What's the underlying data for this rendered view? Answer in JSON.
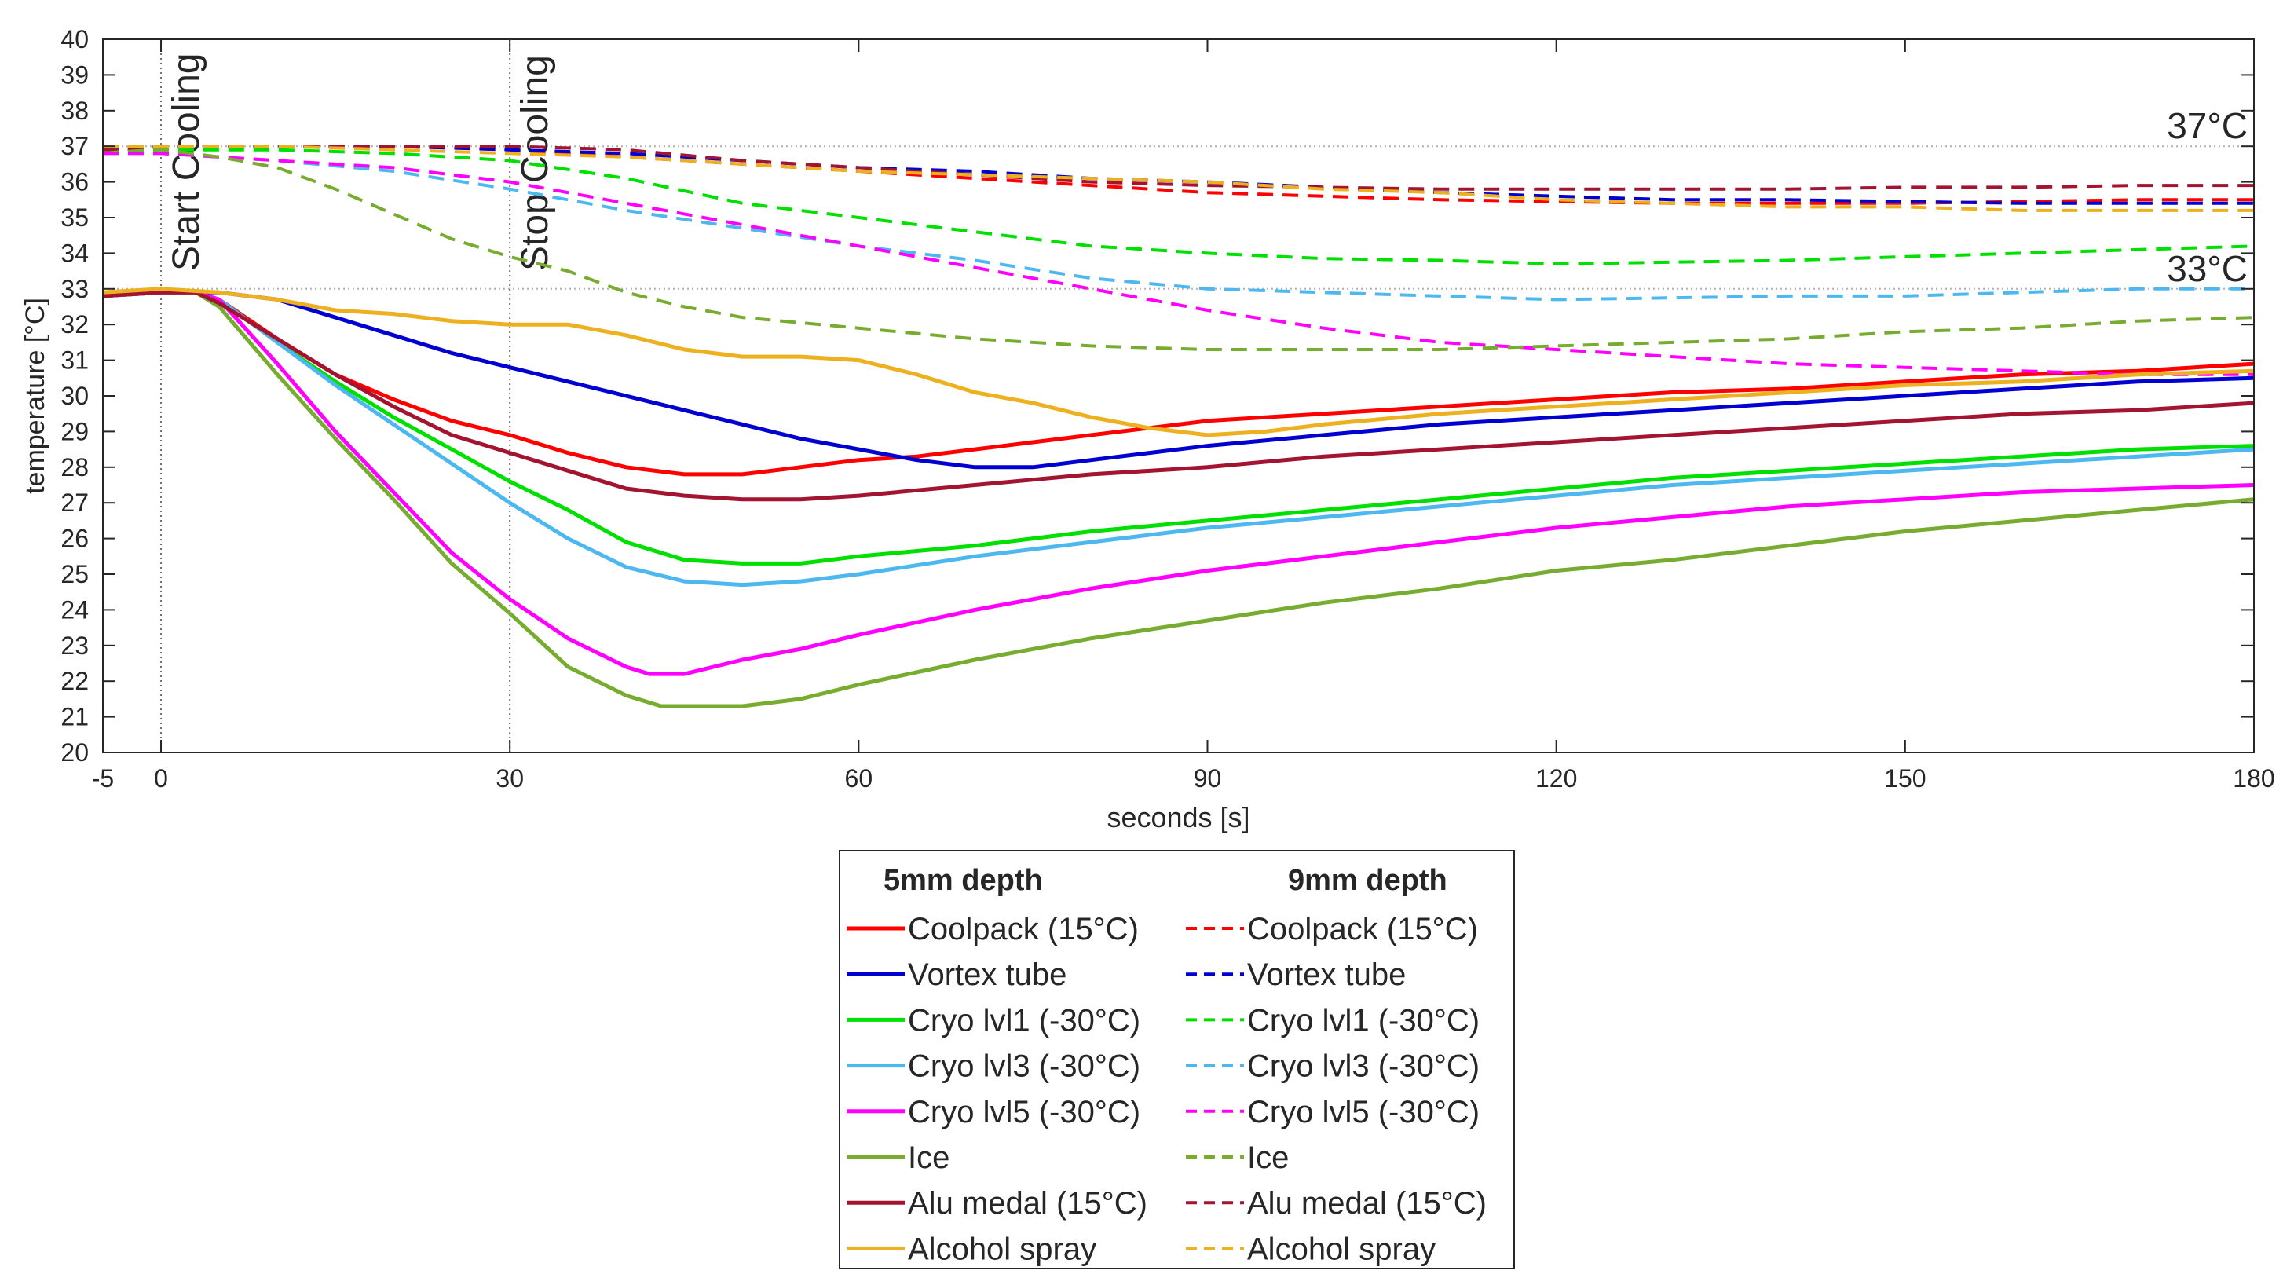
{
  "chart_data": {
    "type": "line",
    "title": "",
    "xlabel": "seconds [s]",
    "ylabel": "temperature [°C]",
    "xlim": [
      -5,
      180
    ],
    "ylim": [
      20,
      40
    ],
    "xticks": [
      -5,
      0,
      30,
      60,
      90,
      120,
      150,
      180
    ],
    "yticks": [
      20,
      21,
      22,
      23,
      24,
      25,
      26,
      27,
      28,
      29,
      30,
      31,
      32,
      33,
      34,
      35,
      36,
      37,
      38,
      39,
      40
    ],
    "grid": false,
    "reference_lines": [
      {
        "value": 37,
        "label": "37°C",
        "color": "#b0b0b0"
      },
      {
        "value": 33,
        "label": "33°C",
        "color": "#b0b0b0"
      }
    ],
    "events": [
      {
        "x": 0,
        "label": "Start Cooling"
      },
      {
        "x": 30,
        "label": "Stop Cooling"
      }
    ],
    "legend": {
      "location": "bottom-center",
      "col1_title": "5mm depth",
      "col2_title": "9mm depth"
    },
    "series": [
      {
        "name": "Coolpack (15°C)",
        "depth": "5mm",
        "color": "#ff0000",
        "dash": false,
        "x": [
          -5,
          0,
          3,
          5,
          10,
          15,
          20,
          25,
          30,
          35,
          40,
          45,
          50,
          55,
          60,
          65,
          70,
          75,
          80,
          85,
          90,
          100,
          110,
          120,
          130,
          140,
          150,
          160,
          170,
          180
        ],
        "y": [
          32.8,
          32.9,
          32.9,
          32.7,
          31.6,
          30.6,
          29.9,
          29.3,
          28.9,
          28.4,
          28.0,
          27.8,
          27.8,
          28.0,
          28.2,
          28.3,
          28.5,
          28.7,
          28.9,
          29.1,
          29.3,
          29.5,
          29.7,
          29.9,
          30.1,
          30.2,
          30.4,
          30.6,
          30.7,
          30.9
        ]
      },
      {
        "name": "Coolpack (15°C)",
        "depth": "9mm",
        "color": "#ff0000",
        "dash": true,
        "x": [
          -5,
          0,
          10,
          20,
          30,
          40,
          50,
          60,
          70,
          80,
          90,
          100,
          110,
          120,
          130,
          140,
          150,
          160,
          170,
          180
        ],
        "y": [
          36.9,
          37.0,
          37.0,
          37.0,
          36.9,
          36.7,
          36.5,
          36.3,
          36.1,
          35.9,
          35.7,
          35.6,
          35.5,
          35.45,
          35.4,
          35.4,
          35.4,
          35.45,
          35.5,
          35.5
        ]
      },
      {
        "name": "Vortex tube",
        "depth": "5mm",
        "color": "#0000d0",
        "dash": false,
        "x": [
          -5,
          0,
          5,
          10,
          15,
          20,
          25,
          30,
          35,
          40,
          45,
          50,
          55,
          60,
          65,
          70,
          75,
          80,
          85,
          90,
          100,
          110,
          120,
          130,
          140,
          150,
          160,
          170,
          180
        ],
        "y": [
          32.8,
          32.9,
          32.9,
          32.7,
          32.2,
          31.7,
          31.2,
          30.8,
          30.4,
          30.0,
          29.6,
          29.2,
          28.8,
          28.5,
          28.2,
          28.0,
          28.0,
          28.2,
          28.4,
          28.6,
          28.9,
          29.2,
          29.4,
          29.6,
          29.8,
          30.0,
          30.2,
          30.4,
          30.5
        ]
      },
      {
        "name": "Vortex tube",
        "depth": "9mm",
        "color": "#0000d0",
        "dash": true,
        "x": [
          -5,
          0,
          10,
          20,
          30,
          40,
          50,
          60,
          70,
          80,
          90,
          100,
          110,
          120,
          130,
          140,
          150,
          160,
          170,
          180
        ],
        "y": [
          36.8,
          37.0,
          37.0,
          37.0,
          36.9,
          36.8,
          36.6,
          36.4,
          36.3,
          36.1,
          36.0,
          35.85,
          35.7,
          35.6,
          35.5,
          35.5,
          35.45,
          35.4,
          35.4,
          35.4
        ]
      },
      {
        "name": "Cryo lvl1 (-30°C)",
        "depth": "5mm",
        "color": "#00e000",
        "dash": false,
        "x": [
          -5,
          0,
          3,
          5,
          10,
          15,
          20,
          25,
          30,
          35,
          40,
          45,
          50,
          55,
          60,
          70,
          80,
          90,
          100,
          110,
          120,
          130,
          140,
          150,
          160,
          170,
          180
        ],
        "y": [
          32.8,
          32.9,
          32.9,
          32.7,
          31.5,
          30.4,
          29.4,
          28.5,
          27.6,
          26.8,
          25.9,
          25.4,
          25.3,
          25.3,
          25.5,
          25.8,
          26.2,
          26.5,
          26.8,
          27.1,
          27.4,
          27.7,
          27.9,
          28.1,
          28.3,
          28.5,
          28.6
        ]
      },
      {
        "name": "Cryo lvl1 (-30°C)",
        "depth": "9mm",
        "color": "#00e000",
        "dash": true,
        "x": [
          -5,
          0,
          10,
          20,
          30,
          40,
          50,
          60,
          70,
          80,
          90,
          100,
          110,
          120,
          130,
          140,
          150,
          160,
          170,
          180
        ],
        "y": [
          36.8,
          36.9,
          36.9,
          36.8,
          36.6,
          36.1,
          35.4,
          35.0,
          34.6,
          34.2,
          34.0,
          33.85,
          33.8,
          33.7,
          33.75,
          33.8,
          33.9,
          34.0,
          34.1,
          34.2
        ]
      },
      {
        "name": "Cryo lvl3 (-30°C)",
        "depth": "5mm",
        "color": "#4db8f0",
        "dash": false,
        "x": [
          -5,
          0,
          3,
          5,
          10,
          15,
          20,
          25,
          30,
          35,
          40,
          45,
          50,
          55,
          60,
          70,
          80,
          90,
          100,
          110,
          120,
          130,
          140,
          150,
          160,
          170,
          180
        ],
        "y": [
          32.8,
          32.9,
          32.9,
          32.7,
          31.5,
          30.3,
          29.2,
          28.1,
          27.0,
          26.0,
          25.2,
          24.8,
          24.7,
          24.8,
          25.0,
          25.5,
          25.9,
          26.3,
          26.6,
          26.9,
          27.2,
          27.5,
          27.7,
          27.9,
          28.1,
          28.3,
          28.5
        ]
      },
      {
        "name": "Cryo lvl3 (-30°C)",
        "depth": "9mm",
        "color": "#4db8f0",
        "dash": true,
        "x": [
          -5,
          0,
          10,
          20,
          30,
          40,
          50,
          60,
          70,
          80,
          90,
          100,
          110,
          120,
          130,
          140,
          150,
          160,
          170,
          180
        ],
        "y": [
          36.8,
          36.8,
          36.6,
          36.3,
          35.8,
          35.2,
          34.7,
          34.2,
          33.8,
          33.3,
          33.0,
          32.9,
          32.8,
          32.7,
          32.75,
          32.8,
          32.8,
          32.9,
          33.0,
          33.0
        ]
      },
      {
        "name": "Cryo lvl5 (-30°C)",
        "depth": "5mm",
        "color": "#ff00ff",
        "dash": false,
        "x": [
          -5,
          0,
          3,
          5,
          10,
          15,
          20,
          25,
          30,
          35,
          40,
          42,
          45,
          50,
          55,
          60,
          70,
          80,
          90,
          100,
          110,
          120,
          130,
          140,
          150,
          160,
          170,
          180
        ],
        "y": [
          32.8,
          32.9,
          32.9,
          32.7,
          30.9,
          29.0,
          27.3,
          25.6,
          24.3,
          23.2,
          22.4,
          22.2,
          22.2,
          22.6,
          22.9,
          23.3,
          24.0,
          24.6,
          25.1,
          25.5,
          25.9,
          26.3,
          26.6,
          26.9,
          27.1,
          27.3,
          27.4,
          27.5
        ]
      },
      {
        "name": "Cryo lvl5 (-30°C)",
        "depth": "9mm",
        "color": "#ff00ff",
        "dash": true,
        "x": [
          -5,
          0,
          10,
          20,
          30,
          40,
          50,
          60,
          70,
          80,
          90,
          100,
          110,
          120,
          130,
          140,
          150,
          160,
          170,
          180
        ],
        "y": [
          36.8,
          36.8,
          36.6,
          36.4,
          36.0,
          35.4,
          34.8,
          34.2,
          33.6,
          33.0,
          32.4,
          31.9,
          31.5,
          31.3,
          31.1,
          30.9,
          30.8,
          30.7,
          30.6,
          30.6
        ]
      },
      {
        "name": "Ice",
        "depth": "5mm",
        "color": "#77ac30",
        "dash": false,
        "x": [
          -5,
          0,
          3,
          5,
          10,
          15,
          20,
          25,
          30,
          35,
          40,
          43,
          45,
          50,
          55,
          60,
          70,
          80,
          90,
          100,
          110,
          120,
          130,
          140,
          150,
          160,
          170,
          180
        ],
        "y": [
          32.8,
          32.9,
          32.9,
          32.5,
          30.6,
          28.8,
          27.1,
          25.3,
          23.9,
          22.4,
          21.6,
          21.3,
          21.3,
          21.3,
          21.5,
          21.9,
          22.6,
          23.2,
          23.7,
          24.2,
          24.6,
          25.1,
          25.4,
          25.8,
          26.2,
          26.5,
          26.8,
          27.1
        ]
      },
      {
        "name": "Ice",
        "depth": "9mm",
        "color": "#77ac30",
        "dash": true,
        "x": [
          -5,
          0,
          5,
          10,
          15,
          20,
          25,
          30,
          35,
          40,
          45,
          50,
          60,
          70,
          80,
          90,
          100,
          110,
          120,
          130,
          140,
          150,
          160,
          170,
          180
        ],
        "y": [
          36.9,
          36.9,
          36.7,
          36.4,
          35.8,
          35.1,
          34.4,
          33.9,
          33.5,
          32.9,
          32.5,
          32.2,
          31.9,
          31.6,
          31.4,
          31.3,
          31.3,
          31.3,
          31.4,
          31.5,
          31.6,
          31.8,
          31.9,
          32.1,
          32.2
        ]
      },
      {
        "name": "Alu medal (15°C)",
        "depth": "5mm",
        "color": "#a2142f",
        "dash": false,
        "x": [
          -5,
          0,
          3,
          5,
          10,
          15,
          20,
          25,
          30,
          35,
          40,
          45,
          50,
          55,
          60,
          70,
          80,
          90,
          100,
          110,
          120,
          130,
          140,
          150,
          160,
          170,
          180
        ],
        "y": [
          32.8,
          32.9,
          32.9,
          32.6,
          31.6,
          30.6,
          29.7,
          28.9,
          28.4,
          27.9,
          27.4,
          27.2,
          27.1,
          27.1,
          27.2,
          27.5,
          27.8,
          28.0,
          28.3,
          28.5,
          28.7,
          28.9,
          29.1,
          29.3,
          29.5,
          29.6,
          29.8
        ]
      },
      {
        "name": "Alu medal (15°C)",
        "depth": "9mm",
        "color": "#a2142f",
        "dash": true,
        "x": [
          -5,
          0,
          10,
          20,
          30,
          40,
          50,
          60,
          70,
          80,
          90,
          100,
          110,
          120,
          130,
          140,
          150,
          160,
          170,
          180
        ],
        "y": [
          36.9,
          37.0,
          37.0,
          37.0,
          37.0,
          36.9,
          36.6,
          36.4,
          36.2,
          36.0,
          35.9,
          35.85,
          35.8,
          35.8,
          35.8,
          35.8,
          35.85,
          35.85,
          35.9,
          35.9
        ]
      },
      {
        "name": "Alcohol spray",
        "depth": "5mm",
        "color": "#edb120",
        "dash": false,
        "x": [
          -5,
          0,
          5,
          10,
          15,
          20,
          25,
          30,
          35,
          40,
          45,
          50,
          55,
          60,
          65,
          70,
          75,
          80,
          85,
          90,
          95,
          100,
          110,
          120,
          130,
          140,
          150,
          160,
          170,
          180
        ],
        "y": [
          32.9,
          33.0,
          32.9,
          32.7,
          32.4,
          32.3,
          32.1,
          32.0,
          32.0,
          31.7,
          31.3,
          31.1,
          31.1,
          31.0,
          30.6,
          30.1,
          29.8,
          29.4,
          29.1,
          28.9,
          29.0,
          29.2,
          29.5,
          29.7,
          29.9,
          30.1,
          30.3,
          30.4,
          30.6,
          30.7
        ]
      },
      {
        "name": "Alcohol spray",
        "depth": "9mm",
        "color": "#edb120",
        "dash": true,
        "x": [
          -5,
          0,
          10,
          20,
          30,
          40,
          50,
          60,
          70,
          80,
          90,
          100,
          110,
          120,
          130,
          140,
          150,
          160,
          170,
          180
        ],
        "y": [
          37.0,
          37.0,
          37.0,
          36.9,
          36.8,
          36.7,
          36.5,
          36.3,
          36.2,
          36.1,
          36.0,
          35.8,
          35.7,
          35.5,
          35.4,
          35.3,
          35.3,
          35.2,
          35.2,
          35.2
        ]
      }
    ]
  }
}
